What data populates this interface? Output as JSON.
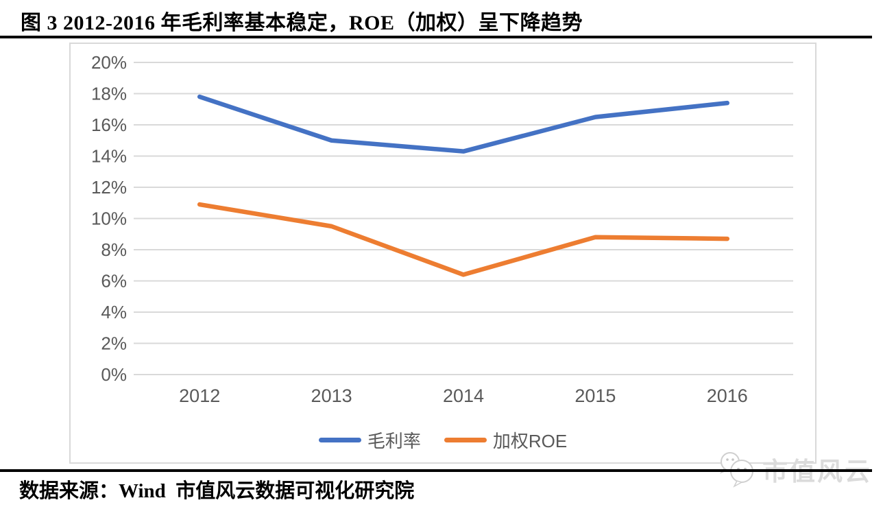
{
  "title": "图 3 2012-2016 年毛利率基本稳定，ROE（加权）呈下降趋势",
  "source_line": "数据来源：Wind  市值风云数据可视化研究院",
  "watermark": {
    "text": "市值风云",
    "icon": "wechat-icon"
  },
  "colors": {
    "series1": "#4472C4",
    "series2": "#ED7D31",
    "gridline": "#D9D9D9",
    "frame_border": "#D9D9D9",
    "axis_text": "#595959",
    "rule": "#000000",
    "watermark": "#DBDBDB"
  },
  "chart_data": {
    "type": "line",
    "title": "",
    "xlabel": "",
    "ylabel": "",
    "categories": [
      "2012",
      "2013",
      "2014",
      "2015",
      "2016"
    ],
    "series": [
      {
        "name": "毛利率",
        "color": "#4472C4",
        "values": [
          17.8,
          15.0,
          14.3,
          16.5,
          17.4
        ]
      },
      {
        "name": "加权ROE",
        "color": "#ED7D31",
        "values": [
          10.9,
          9.5,
          6.4,
          8.8,
          8.7
        ]
      }
    ],
    "ylim": [
      0,
      20
    ],
    "ytick_step": 2,
    "ytick_labels": [
      "0%",
      "2%",
      "4%",
      "6%",
      "8%",
      "10%",
      "12%",
      "14%",
      "16%",
      "18%",
      "20%"
    ],
    "grid": true,
    "legend_position": "bottom"
  }
}
